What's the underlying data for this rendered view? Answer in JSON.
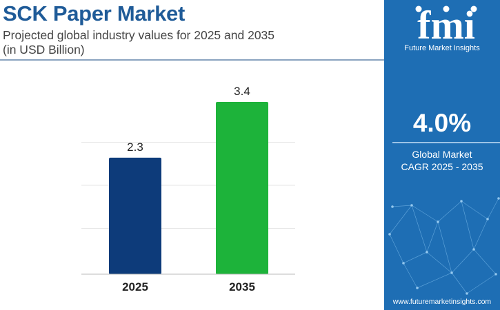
{
  "header": {
    "title": "SCK Paper Market",
    "subtitle_line1": "Projected global industry values for 2025 and 2035",
    "subtitle_line2": "(in USD Billion)"
  },
  "chart_data": {
    "type": "bar",
    "categories": [
      "2025",
      "2035"
    ],
    "values": [
      2.3,
      3.4
    ],
    "data_labels": [
      "2.3",
      "3.4"
    ],
    "colors": [
      "#0d3b7a",
      "#1db33a"
    ],
    "title": "SCK Paper Market",
    "ylim": [
      0,
      3.4
    ],
    "grid": true,
    "legend": "none"
  },
  "sidebar": {
    "logo_text": "fmi",
    "logo_caption": "Future Market Insights",
    "cagr_value": "4.0%",
    "cagr_label_line1": "Global Market",
    "cagr_label_line2": "CAGR 2025 - 2035",
    "website": "www.futuremarketinsights.com"
  },
  "colors": {
    "title": "#1f5b98",
    "sidebar_bg": "#1e6eb4"
  }
}
